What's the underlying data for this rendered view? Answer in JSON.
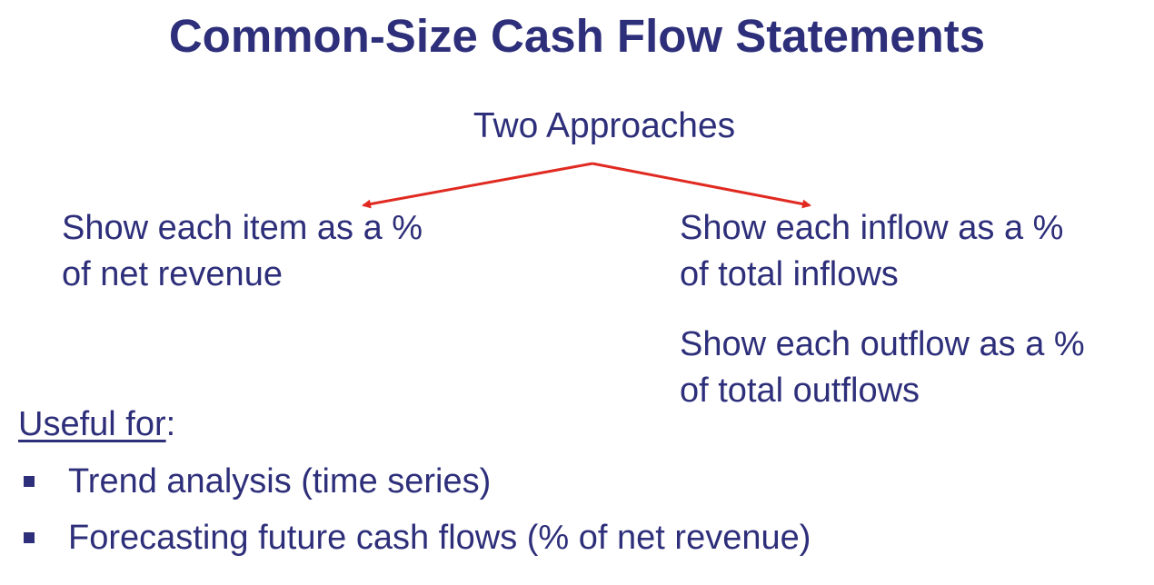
{
  "title": "Common-Size Cash Flow Statements",
  "subtitle": "Two Approaches",
  "approaches": {
    "left": {
      "line1": "Show each item as a %",
      "line2": "of net revenue"
    },
    "right_inflow": {
      "line1": "Show each inflow as a %",
      "line2": "of total inflows"
    },
    "right_outflow": {
      "line1": "Show each outflow as a %",
      "line2": "of total outflows"
    }
  },
  "useful": {
    "label": "Useful for",
    "suffix": ":"
  },
  "bullets": [
    "Trend analysis (time series)",
    "Forecasting future cash flows (% of net revenue)"
  ],
  "colors": {
    "text": "#2e2f7a",
    "arrow": "#e02a21"
  }
}
